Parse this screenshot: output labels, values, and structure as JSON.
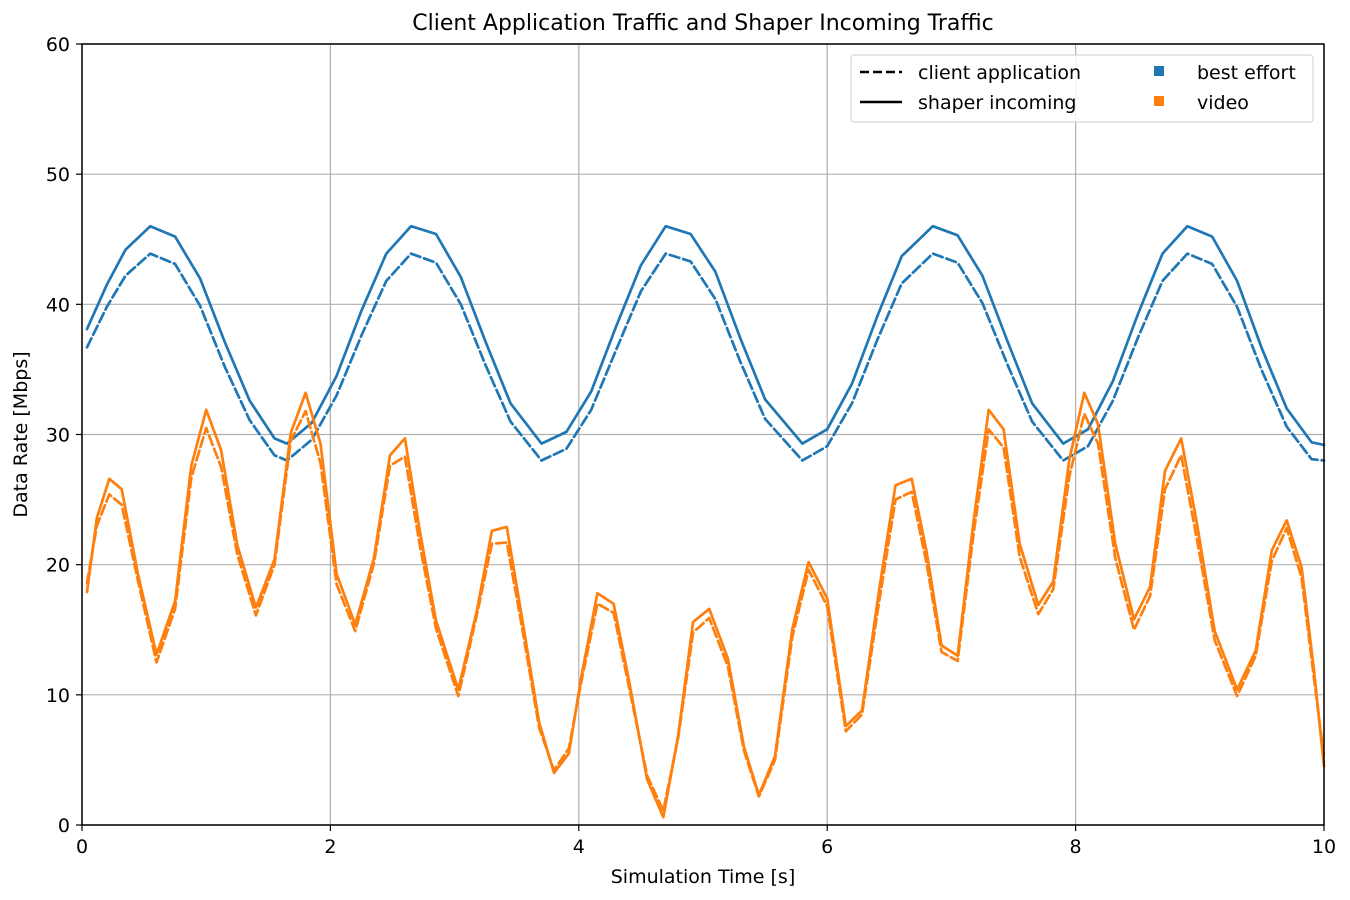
{
  "chart_data": {
    "type": "line",
    "title": "Client Application Traffic and Shaper Incoming Traffic",
    "xlabel": "Simulation Time [s]",
    "ylabel": "Data Rate [Mbps]",
    "xlim": [
      0,
      10
    ],
    "ylim": [
      0,
      60
    ],
    "xticks": [
      0,
      2,
      4,
      6,
      8,
      10
    ],
    "yticks": [
      0,
      10,
      20,
      30,
      40,
      50,
      60
    ],
    "grid": true,
    "legend_position": "top-right",
    "legend": {
      "linestyles": [
        {
          "label": "client application",
          "style": "dashed"
        },
        {
          "label": "shaper incoming",
          "style": "solid"
        }
      ],
      "colors": [
        {
          "label": "best effort",
          "color": "#1f77b4"
        },
        {
          "label": "video",
          "color": "#ff7f0e"
        }
      ]
    },
    "series": [
      {
        "category": "best effort",
        "kind": "client application",
        "color": "#1f77b4",
        "style": "dashed",
        "x": [
          0.04,
          0.2,
          0.35,
          0.55,
          0.75,
          0.95,
          1.15,
          1.35,
          1.55,
          1.65,
          1.85,
          2.05,
          2.25,
          2.45,
          2.65,
          2.85,
          3.05,
          3.25,
          3.45,
          3.7,
          3.9,
          4.1,
          4.3,
          4.5,
          4.7,
          4.9,
          5.1,
          5.3,
          5.5,
          5.8,
          6.0,
          6.2,
          6.4,
          6.6,
          6.85,
          7.05,
          7.25,
          7.45,
          7.65,
          7.9,
          8.1,
          8.3,
          8.5,
          8.7,
          8.9,
          9.1,
          9.3,
          9.5,
          9.7,
          9.9,
          10.0
        ],
        "y": [
          36.7,
          39.8,
          42.2,
          43.9,
          43.1,
          39.9,
          35.2,
          31.1,
          28.4,
          28.0,
          29.6,
          33.0,
          37.6,
          41.8,
          43.9,
          43.2,
          40.0,
          35.3,
          31.0,
          28.0,
          28.9,
          31.9,
          36.5,
          41.0,
          43.9,
          43.3,
          40.4,
          35.6,
          31.2,
          28.0,
          29.1,
          32.4,
          37.2,
          41.6,
          43.9,
          43.2,
          40.1,
          35.4,
          31.0,
          28.0,
          29.1,
          32.6,
          37.4,
          41.8,
          43.9,
          43.1,
          39.8,
          34.9,
          30.6,
          28.1,
          28.0
        ]
      },
      {
        "category": "best effort",
        "kind": "shaper incoming",
        "color": "#1f77b4",
        "style": "solid",
        "x": [
          0.04,
          0.2,
          0.35,
          0.55,
          0.75,
          0.95,
          1.15,
          1.35,
          1.55,
          1.65,
          1.85,
          2.05,
          2.25,
          2.45,
          2.65,
          2.85,
          3.05,
          3.25,
          3.45,
          3.7,
          3.9,
          4.1,
          4.3,
          4.5,
          4.7,
          4.9,
          5.1,
          5.3,
          5.5,
          5.8,
          6.0,
          6.2,
          6.4,
          6.6,
          6.85,
          7.05,
          7.25,
          7.45,
          7.65,
          7.9,
          8.1,
          8.3,
          8.5,
          8.7,
          8.9,
          9.1,
          9.3,
          9.5,
          9.7,
          9.9,
          10.0
        ],
        "y": [
          38.1,
          41.5,
          44.2,
          46.0,
          45.2,
          42.0,
          37.1,
          32.6,
          29.7,
          29.3,
          30.9,
          34.5,
          39.5,
          43.9,
          46.0,
          45.4,
          42.1,
          37.1,
          32.4,
          29.3,
          30.2,
          33.3,
          38.3,
          43.0,
          46.0,
          45.4,
          42.5,
          37.4,
          32.7,
          29.3,
          30.4,
          33.9,
          39.0,
          43.7,
          46.0,
          45.3,
          42.2,
          37.2,
          32.4,
          29.3,
          30.4,
          34.1,
          39.2,
          43.9,
          46.0,
          45.2,
          41.8,
          36.6,
          32.0,
          29.4,
          29.2
        ]
      },
      {
        "category": "video",
        "kind": "client application",
        "color": "#ff7f0e",
        "style": "dashed",
        "x": [
          0.04,
          0.12,
          0.22,
          0.32,
          0.45,
          0.6,
          0.75,
          0.88,
          1.0,
          1.12,
          1.25,
          1.4,
          1.55,
          1.68,
          1.8,
          1.92,
          2.05,
          2.2,
          2.35,
          2.48,
          2.6,
          2.72,
          2.85,
          3.03,
          3.18,
          3.3,
          3.42,
          3.55,
          3.68,
          3.8,
          3.92,
          4.02,
          4.15,
          4.28,
          4.4,
          4.55,
          4.68,
          4.8,
          4.92,
          5.05,
          5.2,
          5.33,
          5.45,
          5.58,
          5.72,
          5.85,
          6.0,
          6.15,
          6.28,
          6.42,
          6.55,
          6.68,
          6.8,
          6.92,
          7.05,
          7.18,
          7.3,
          7.42,
          7.55,
          7.7,
          7.82,
          7.95,
          8.07,
          8.18,
          8.32,
          8.47,
          8.6,
          8.72,
          8.85,
          8.98,
          9.12,
          9.3,
          9.45,
          9.58,
          9.7,
          9.82,
          9.92,
          10.0
        ],
        "y": [
          18.6,
          23.0,
          25.4,
          24.6,
          18.8,
          12.5,
          16.6,
          26.7,
          30.5,
          27.5,
          20.8,
          16.1,
          20.0,
          29.5,
          31.8,
          27.8,
          18.5,
          14.9,
          20.1,
          27.6,
          28.3,
          21.5,
          15.1,
          9.9,
          16.2,
          21.6,
          21.7,
          14.8,
          7.5,
          4.2,
          5.9,
          11.0,
          17.0,
          16.3,
          10.8,
          3.8,
          1.1,
          6.7,
          14.8,
          15.9,
          12.2,
          5.7,
          2.2,
          5.0,
          14.5,
          19.6,
          16.8,
          7.2,
          8.5,
          17.3,
          25.0,
          25.6,
          20.1,
          13.3,
          12.6,
          22.5,
          30.4,
          29.0,
          20.6,
          16.2,
          18.1,
          26.8,
          31.6,
          29.3,
          20.5,
          15.0,
          17.6,
          25.8,
          28.4,
          21.8,
          14.2,
          9.9,
          13.0,
          20.3,
          22.8,
          19.0,
          11.2,
          5.2
        ]
      },
      {
        "category": "video",
        "kind": "shaper incoming",
        "color": "#ff7f0e",
        "style": "solid",
        "x": [
          0.04,
          0.12,
          0.22,
          0.32,
          0.45,
          0.6,
          0.75,
          0.88,
          1.0,
          1.12,
          1.25,
          1.4,
          1.55,
          1.68,
          1.8,
          1.92,
          2.05,
          2.2,
          2.35,
          2.48,
          2.6,
          2.72,
          2.85,
          3.03,
          3.18,
          3.3,
          3.42,
          3.55,
          3.68,
          3.8,
          3.92,
          4.02,
          4.15,
          4.28,
          4.4,
          4.55,
          4.68,
          4.8,
          4.92,
          5.05,
          5.2,
          5.33,
          5.45,
          5.58,
          5.72,
          5.85,
          6.0,
          6.15,
          6.28,
          6.42,
          6.55,
          6.68,
          6.8,
          6.92,
          7.05,
          7.18,
          7.3,
          7.42,
          7.55,
          7.7,
          7.82,
          7.95,
          8.07,
          8.18,
          8.32,
          8.47,
          8.6,
          8.72,
          8.85,
          8.98,
          9.12,
          9.3,
          9.45,
          9.58,
          9.7,
          9.82,
          9.92,
          10.0
        ],
        "y": [
          17.9,
          23.6,
          26.6,
          25.8,
          19.3,
          13.1,
          17.2,
          27.6,
          31.9,
          28.8,
          21.5,
          16.7,
          20.4,
          30.1,
          33.2,
          29.3,
          19.3,
          15.4,
          20.5,
          28.4,
          29.7,
          22.6,
          15.7,
          10.4,
          16.5,
          22.6,
          22.9,
          15.5,
          7.9,
          4.0,
          5.5,
          11.4,
          17.8,
          17.0,
          11.3,
          3.5,
          0.6,
          6.9,
          15.6,
          16.6,
          12.8,
          6.0,
          2.3,
          5.3,
          15.1,
          20.2,
          17.4,
          7.6,
          8.8,
          18.2,
          26.1,
          26.6,
          21.0,
          13.8,
          13.0,
          23.5,
          31.9,
          30.4,
          21.6,
          16.9,
          18.7,
          28.1,
          33.2,
          30.8,
          21.6,
          15.8,
          18.3,
          27.2,
          29.7,
          23.0,
          14.9,
          10.4,
          13.4,
          21.1,
          23.4,
          19.8,
          11.8,
          4.5
        ]
      }
    ]
  }
}
